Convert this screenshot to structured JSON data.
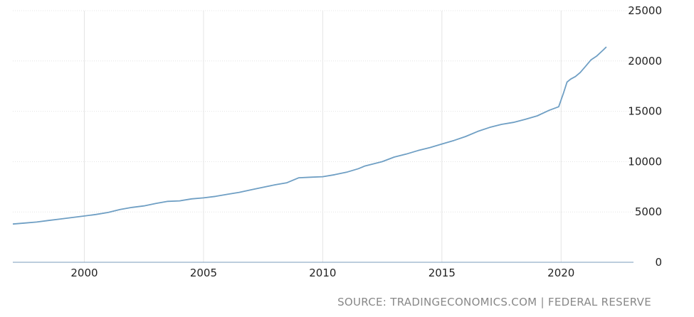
{
  "source_text": "SOURCE: TRADINGECONOMICS.COM | FEDERAL RESERVE",
  "colors": {
    "line": "#6f9fc4",
    "grid": "#e4e4e4",
    "axis": "#7a9bbb",
    "text": "#222222",
    "source": "#888888"
  },
  "chart_data": {
    "type": "line",
    "title": "",
    "xlabel": "",
    "ylabel": "",
    "xlim": [
      1997.0,
      2022.5
    ],
    "ylim": [
      0,
      25000
    ],
    "grid": true,
    "y_ticks": [
      "0",
      "5000",
      "10000",
      "15000",
      "20000",
      "25000"
    ],
    "x_ticks": [
      "2000",
      "2005",
      "2010",
      "2015",
      "2020"
    ],
    "series": [
      {
        "name": "",
        "x": [
          1997.0,
          1997.5,
          1998.0,
          1998.5,
          1999.0,
          1999.5,
          2000.0,
          2000.5,
          2001.0,
          2001.5,
          2002.0,
          2002.5,
          2003.0,
          2003.5,
          2004.0,
          2004.5,
          2005.0,
          2005.5,
          2006.0,
          2006.5,
          2007.0,
          2007.5,
          2008.0,
          2008.5,
          2008.75,
          2009.0,
          2009.5,
          2010.0,
          2010.5,
          2011.0,
          2011.5,
          2011.75,
          2012.0,
          2012.5,
          2013.0,
          2013.5,
          2014.0,
          2014.5,
          2015.0,
          2015.5,
          2016.0,
          2016.5,
          2017.0,
          2017.5,
          2018.0,
          2018.5,
          2019.0,
          2019.5,
          2019.9,
          2020.1,
          2020.25,
          2020.4,
          2020.6,
          2020.8,
          2021.0,
          2021.25,
          2021.5,
          2021.75,
          2021.9
        ],
        "y": [
          3800,
          3900,
          4000,
          4150,
          4300,
          4450,
          4600,
          4750,
          4950,
          5250,
          5450,
          5600,
          5850,
          6050,
          6100,
          6300,
          6400,
          6550,
          6750,
          6950,
          7200,
          7450,
          7700,
          7900,
          8150,
          8400,
          8450,
          8500,
          8700,
          8950,
          9300,
          9550,
          9700,
          10000,
          10450,
          10750,
          11100,
          11400,
          11750,
          12100,
          12500,
          13000,
          13400,
          13700,
          13900,
          14200,
          14550,
          15100,
          15450,
          16800,
          17900,
          18200,
          18450,
          18850,
          19400,
          20100,
          20500,
          21050,
          21400
        ]
      }
    ]
  }
}
